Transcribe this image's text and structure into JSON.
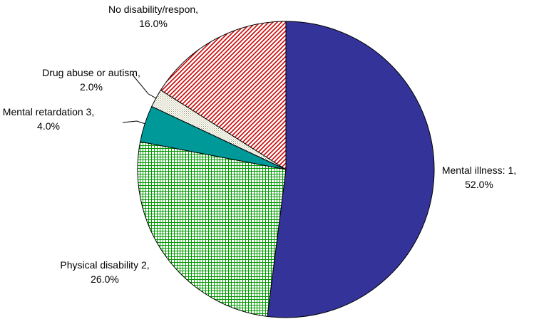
{
  "chart_data": {
    "type": "pie",
    "categories": [
      "Mental illness: 1,",
      "Physical disability 2,",
      "Mental retardation 3,",
      "Drug abuse or autism,",
      "No disability/respon,"
    ],
    "values": [
      52,
      26,
      4,
      2,
      16
    ],
    "value_labels": [
      "52.0%",
      "26.0%",
      "4.0%",
      "2.0%",
      "16.0%"
    ],
    "colors": [
      "#333399",
      "#009900",
      "#009999",
      "#999966",
      "#cc0000"
    ],
    "patterns": [
      "solid",
      "grid",
      "solid",
      "dots",
      "stripes"
    ]
  }
}
